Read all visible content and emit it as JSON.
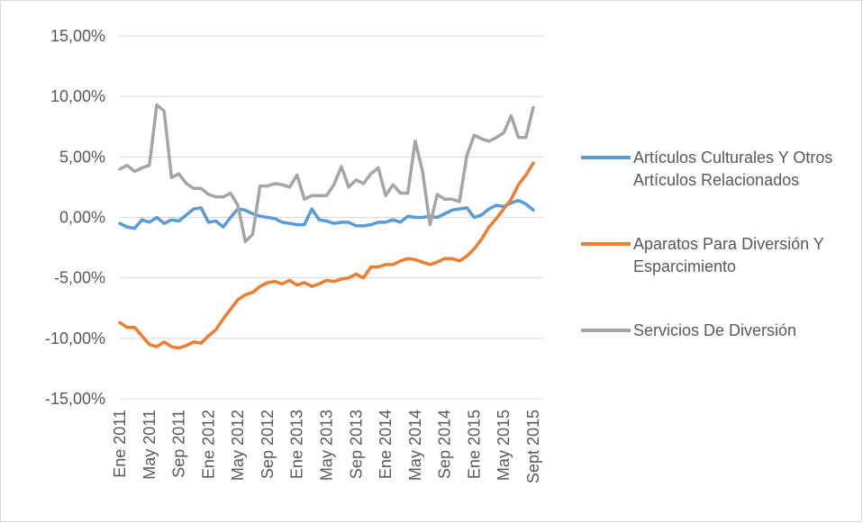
{
  "chart_data": {
    "type": "line",
    "categories": [
      "Ene 2011",
      null,
      null,
      null,
      "May 2011",
      null,
      null,
      null,
      "Sep 2011",
      null,
      null,
      null,
      "Ene 2012",
      null,
      null,
      null,
      "May 2012",
      null,
      null,
      null,
      "Sep 2012",
      null,
      null,
      null,
      "Ene 2013",
      null,
      null,
      null,
      "May 2013",
      null,
      null,
      null,
      "Sep 2013",
      null,
      null,
      null,
      "Ene 2014",
      null,
      null,
      null,
      "May 2014",
      null,
      null,
      null,
      "Sep 2014",
      null,
      null,
      null,
      "Ene 2015",
      null,
      null,
      null,
      "May 2015",
      null,
      null,
      null,
      "Sept 2015"
    ],
    "series": [
      {
        "name": "Artículos Culturales Y Otros Artículos Relacionados",
        "color": "#5b9bd5",
        "values": [
          -0.5,
          -0.8,
          -0.9,
          -0.2,
          -0.4,
          0.0,
          -0.5,
          -0.2,
          -0.3,
          0.2,
          0.7,
          0.8,
          -0.4,
          -0.3,
          -0.8,
          0.0,
          0.7,
          0.6,
          0.3,
          0.1,
          0.0,
          -0.1,
          -0.4,
          -0.5,
          -0.6,
          -0.6,
          0.7,
          -0.2,
          -0.3,
          -0.5,
          -0.4,
          -0.4,
          -0.7,
          -0.7,
          -0.6,
          -0.4,
          -0.4,
          -0.2,
          -0.4,
          0.1,
          0.0,
          0.0,
          0.1,
          0.0,
          0.3,
          0.6,
          0.7,
          0.8,
          0.0,
          0.2,
          0.7,
          1.0,
          0.9,
          1.2,
          1.4,
          1.1,
          0.6
        ]
      },
      {
        "name": "Aparatos Para Diversión Y Esparcimiento",
        "color": "#ed7d31",
        "values": [
          -8.7,
          -9.1,
          -9.1,
          -9.8,
          -10.5,
          -10.7,
          -10.3,
          -10.7,
          -10.8,
          -10.6,
          -10.3,
          -10.4,
          -9.8,
          -9.3,
          -8.4,
          -7.6,
          -6.8,
          -6.4,
          -6.2,
          -5.7,
          -5.4,
          -5.3,
          -5.5,
          -5.2,
          -5.6,
          -5.4,
          -5.7,
          -5.5,
          -5.2,
          -5.3,
          -5.1,
          -5.0,
          -4.7,
          -5.0,
          -4.1,
          -4.1,
          -3.9,
          -3.9,
          -3.6,
          -3.4,
          -3.5,
          -3.7,
          -3.9,
          -3.7,
          -3.4,
          -3.4,
          -3.6,
          -3.2,
          -2.6,
          -1.8,
          -0.8,
          -0.1,
          0.7,
          1.5,
          2.7,
          3.5,
          4.5
        ]
      },
      {
        "name": "Servicios De Diversión",
        "color": "#a5a5a5",
        "values": [
          4.0,
          4.3,
          3.8,
          4.1,
          4.3,
          9.3,
          8.8,
          3.3,
          3.6,
          2.8,
          2.4,
          2.4,
          1.9,
          1.7,
          1.7,
          2.0,
          1.0,
          -2.0,
          -1.4,
          2.6,
          2.6,
          2.8,
          2.7,
          2.5,
          3.5,
          1.5,
          1.8,
          1.8,
          1.8,
          2.7,
          4.2,
          2.5,
          3.1,
          2.8,
          3.6,
          4.1,
          1.8,
          2.7,
          2.0,
          2.0,
          6.3,
          3.8,
          -0.6,
          1.9,
          1.5,
          1.5,
          1.3,
          5.1,
          6.8,
          6.5,
          6.3,
          6.6,
          7.0,
          8.4,
          6.6,
          6.6,
          9.1
        ]
      }
    ],
    "ylim": [
      -15,
      15
    ],
    "yticks": [
      {
        "value": -15,
        "label": "-15,00%"
      },
      {
        "value": -10,
        "label": "-10,00%"
      },
      {
        "value": -5,
        "label": "-5,00%"
      },
      {
        "value": 0,
        "label": "0,00%"
      },
      {
        "value": 5,
        "label": "5,00%"
      },
      {
        "value": 10,
        "label": "10,00%"
      },
      {
        "value": 15,
        "label": "15,00%"
      }
    ],
    "grid": true
  }
}
